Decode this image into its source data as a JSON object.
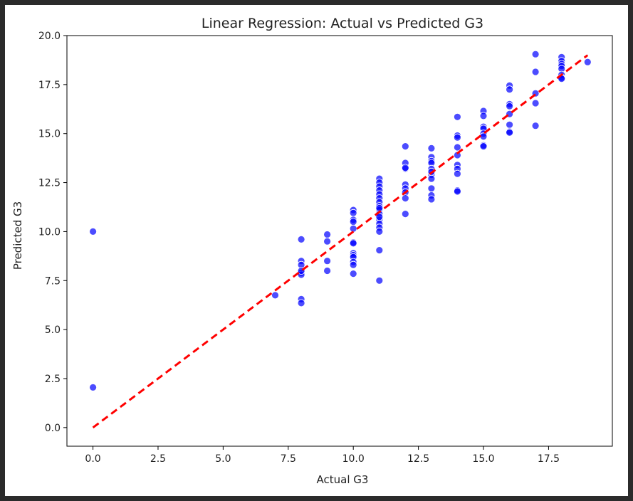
{
  "chart_data": {
    "type": "scatter",
    "title": "Linear Regression: Actual vs Predicted G3",
    "xlabel": "Actual G3",
    "ylabel": "Predicted G3",
    "xlim": [
      -1,
      19.95
    ],
    "ylim": [
      -0.95,
      20
    ],
    "xticks": [
      "0.0",
      "2.5",
      "5.0",
      "7.5",
      "10.0",
      "12.5",
      "15.0",
      "17.5"
    ],
    "yticks": [
      "0.0",
      "2.5",
      "5.0",
      "7.5",
      "10.0",
      "12.5",
      "15.0",
      "17.5",
      "20.0"
    ],
    "grid": false,
    "legend": "none",
    "series": [
      {
        "kind": "points",
        "color": "#0000ff",
        "x": [
          0,
          0,
          7,
          8,
          8,
          8,
          8,
          8,
          8,
          8,
          8,
          9,
          9,
          9,
          9,
          10,
          10,
          10,
          10,
          10,
          10,
          10,
          10,
          10,
          10,
          10,
          10,
          10,
          11,
          11,
          11,
          11,
          11,
          11,
          11,
          11,
          11,
          11,
          11,
          11,
          11,
          11,
          11,
          11,
          11,
          11,
          12,
          12,
          12,
          12,
          12,
          12,
          12,
          12,
          12,
          13,
          13,
          13,
          13,
          13,
          13,
          13,
          13,
          13,
          13,
          13,
          14,
          14,
          14,
          14,
          14,
          14,
          14,
          14,
          14,
          14,
          15,
          15,
          15,
          15,
          15,
          15,
          15,
          15,
          16,
          16,
          16,
          16,
          16,
          16,
          16,
          16,
          17,
          17,
          17,
          17,
          17,
          18,
          18,
          18,
          18,
          18,
          18,
          18,
          18,
          19
        ],
        "y": [
          10.0,
          2.05,
          6.75,
          9.6,
          8.5,
          8.3,
          7.9,
          7.8,
          6.55,
          6.35,
          8.0,
          9.85,
          9.5,
          8.5,
          8.0,
          11.1,
          10.95,
          10.6,
          10.5,
          10.15,
          9.45,
          9.4,
          8.9,
          8.8,
          8.7,
          8.45,
          8.3,
          7.85,
          12.7,
          12.5,
          12.3,
          12.1,
          11.9,
          11.7,
          11.5,
          11.3,
          11.1,
          10.9,
          10.6,
          10.4,
          10.2,
          10.0,
          9.05,
          7.5,
          11.2,
          10.75,
          14.35,
          13.5,
          13.2,
          12.4,
          12.2,
          12.0,
          11.7,
          10.9,
          13.25,
          14.25,
          13.8,
          13.6,
          13.5,
          13.2,
          12.9,
          12.7,
          12.2,
          11.85,
          11.65,
          13.05,
          15.85,
          14.9,
          14.8,
          14.3,
          13.9,
          13.4,
          13.2,
          12.95,
          12.1,
          12.05,
          16.15,
          15.9,
          15.35,
          15.25,
          15.0,
          14.85,
          14.4,
          14.35,
          17.45,
          17.25,
          16.5,
          16.4,
          16.0,
          15.45,
          15.1,
          15.05,
          19.05,
          18.15,
          17.05,
          16.55,
          15.4,
          18.9,
          18.7,
          18.55,
          18.45,
          18.3,
          18.0,
          17.85,
          17.8,
          18.65
        ]
      },
      {
        "kind": "reference-line",
        "color": "#ff0000",
        "style": "dashed",
        "x": [
          0,
          19
        ],
        "y": [
          0,
          19
        ]
      }
    ]
  }
}
